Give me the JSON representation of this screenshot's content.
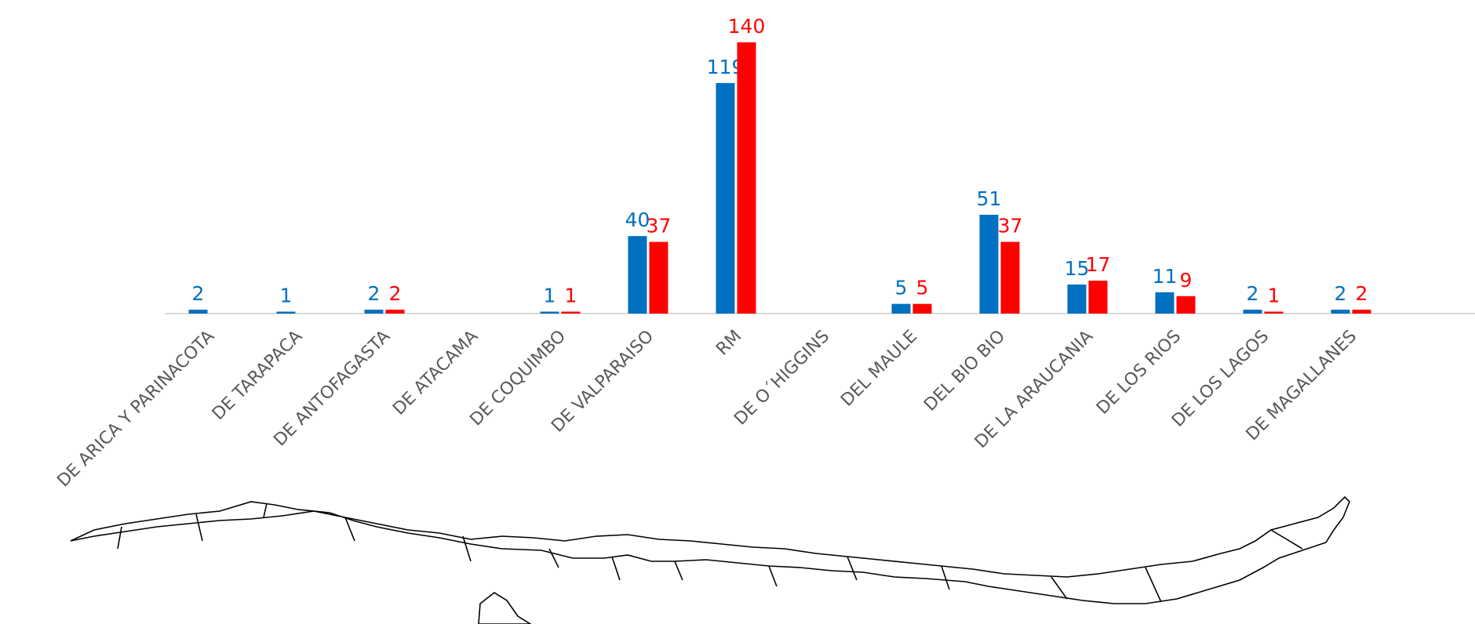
{
  "chart_data": {
    "type": "bar",
    "categories": [
      "DE ARICA Y PARINACOTA",
      "DE TARAPACA",
      "DE ANTOFAGASTA",
      "DE ATACAMA",
      "DE COQUIMBO",
      "DE VALPARAISO",
      "RM",
      "DE O´HIGGINS",
      "DEL MAULE",
      "DEL BIO BIO",
      "DE LA ARAUCANIA",
      "DE LOS RIOS",
      "DE LOS LAGOS",
      "DE MAGALLANES"
    ],
    "series": [
      {
        "color": "#0070c0",
        "values": [
          2,
          1,
          2,
          null,
          1,
          40,
          119,
          null,
          5,
          51,
          15,
          11,
          2,
          2
        ]
      },
      {
        "color": "#ff0000",
        "values": [
          null,
          null,
          2,
          null,
          1,
          37,
          140,
          null,
          5,
          37,
          17,
          9,
          1,
          2
        ]
      }
    ],
    "ylim": [
      0,
      140
    ]
  }
}
